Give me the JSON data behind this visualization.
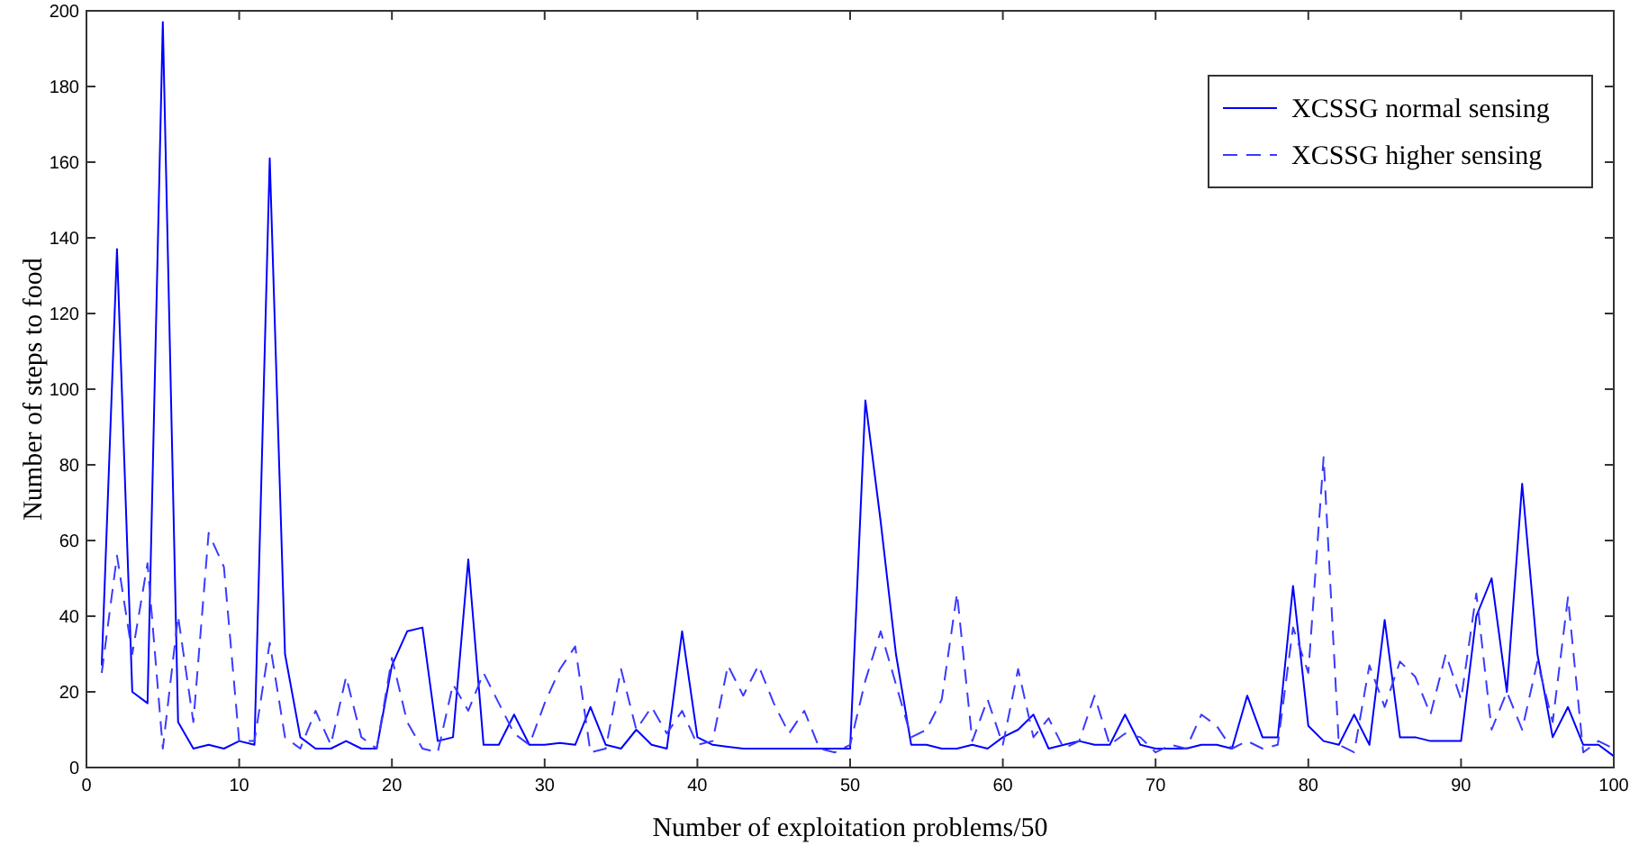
{
  "chart_data": {
    "type": "line",
    "xlabel": "Number of exploitation problems/50",
    "ylabel": "Number of steps to food",
    "x": [
      1,
      2,
      3,
      4,
      5,
      6,
      7,
      8,
      9,
      10,
      11,
      12,
      13,
      14,
      15,
      16,
      17,
      18,
      19,
      20,
      21,
      22,
      23,
      24,
      25,
      26,
      27,
      28,
      29,
      30,
      31,
      32,
      33,
      34,
      35,
      36,
      37,
      38,
      39,
      40,
      41,
      42,
      43,
      44,
      45,
      46,
      47,
      48,
      49,
      50,
      51,
      52,
      53,
      54,
      55,
      56,
      57,
      58,
      59,
      60,
      61,
      62,
      63,
      64,
      65,
      66,
      67,
      68,
      69,
      70,
      71,
      72,
      73,
      74,
      75,
      76,
      77,
      78,
      79,
      80,
      81,
      82,
      83,
      84,
      85,
      86,
      87,
      88,
      89,
      90,
      91,
      92,
      93,
      94,
      95,
      96,
      97,
      98,
      99,
      100
    ],
    "series": [
      {
        "name": "XCSSG normal sensing",
        "color": "#0000ff",
        "line_style": "solid",
        "values": [
          27,
          137,
          20,
          17,
          197,
          12,
          5,
          6,
          5,
          7,
          6,
          161,
          30,
          8,
          5,
          5,
          7,
          5,
          5,
          27,
          36,
          37,
          7,
          8,
          55,
          6,
          6,
          14,
          6,
          6,
          6.5,
          6,
          16,
          6,
          5,
          10,
          6,
          5,
          36,
          8,
          6,
          5.5,
          5,
          5,
          5,
          5,
          5,
          5,
          5,
          5,
          97,
          65,
          30,
          6,
          6,
          5,
          5,
          6,
          5,
          8,
          10,
          14,
          5,
          6,
          7,
          6,
          6,
          14,
          6,
          5,
          5,
          5,
          6,
          6,
          5,
          19,
          8,
          8,
          48,
          11,
          7,
          6,
          14,
          6,
          39,
          8,
          8,
          7,
          7,
          7,
          40,
          50,
          20,
          75,
          30,
          8,
          16,
          6,
          6,
          3
        ]
      },
      {
        "name": "XCSSG higher sensing",
        "color": "#3a3aff",
        "line_style": "dashed",
        "values": [
          25,
          56,
          30,
          54,
          5,
          40,
          12,
          62,
          53,
          7,
          7,
          33,
          8,
          5,
          15,
          6,
          24,
          8,
          5,
          29,
          12,
          5,
          4,
          22,
          15,
          25,
          17,
          9,
          6,
          17,
          26,
          32,
          4,
          5,
          26,
          10,
          16,
          9,
          15,
          6,
          7,
          27,
          19,
          27,
          17,
          9,
          15,
          5,
          4,
          6,
          23,
          36,
          22,
          8,
          10,
          18,
          46,
          7,
          18,
          6,
          26,
          8,
          13,
          5,
          7,
          19,
          6,
          9,
          8,
          4,
          6,
          5,
          14,
          11,
          5,
          7,
          5,
          6,
          37,
          25,
          82,
          6,
          4,
          27,
          16,
          28,
          24,
          14,
          30,
          18,
          46,
          10,
          20,
          10,
          28,
          12,
          45,
          4,
          7,
          5
        ]
      }
    ],
    "xlim": [
      0,
      100
    ],
    "xticks": [
      0,
      10,
      20,
      30,
      40,
      50,
      60,
      70,
      80,
      90,
      100
    ],
    "ylim": [
      0,
      200
    ],
    "yticks": [
      0,
      20,
      40,
      60,
      80,
      100,
      120,
      140,
      160,
      180,
      200
    ],
    "grid": false,
    "legend": "top right",
    "marker": "none"
  }
}
